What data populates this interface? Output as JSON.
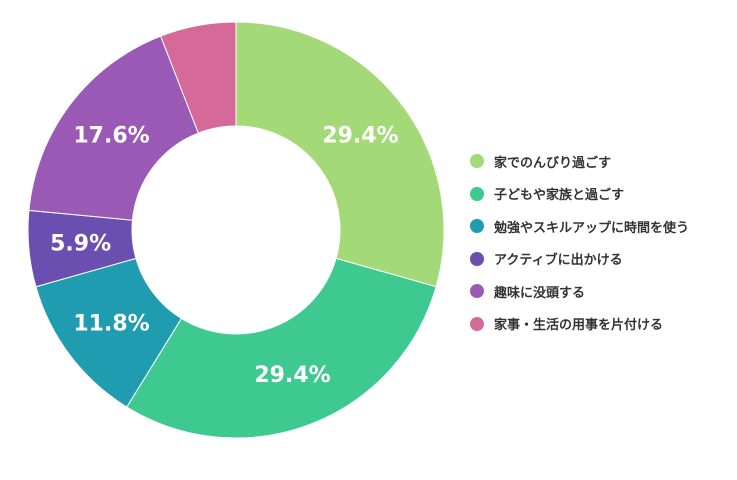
{
  "chart_data": {
    "type": "pie",
    "donut": true,
    "title": "",
    "legend_position": "right",
    "slices": [
      {
        "label": "家でのんびり過ごす",
        "value": 29.4,
        "display": "29.4%",
        "color": "#a3d977"
      },
      {
        "label": "子どもや家族と過ごす",
        "value": 29.4,
        "display": "29.4%",
        "color": "#3dc98f"
      },
      {
        "label": "勉強やスキルアップに時間を使う",
        "value": 11.8,
        "display": "11.8%",
        "color": "#209cb0"
      },
      {
        "label": "アクティブに出かける",
        "value": 5.9,
        "display": "5.9%",
        "color": "#6a4fb0"
      },
      {
        "label": "趣味に没頭する",
        "value": 17.6,
        "display": "17.6%",
        "color": "#9b59b6"
      },
      {
        "label": "家事・生活の用事を片付ける",
        "value": 5.9,
        "display": "",
        "color": "#d56a99"
      }
    ]
  }
}
